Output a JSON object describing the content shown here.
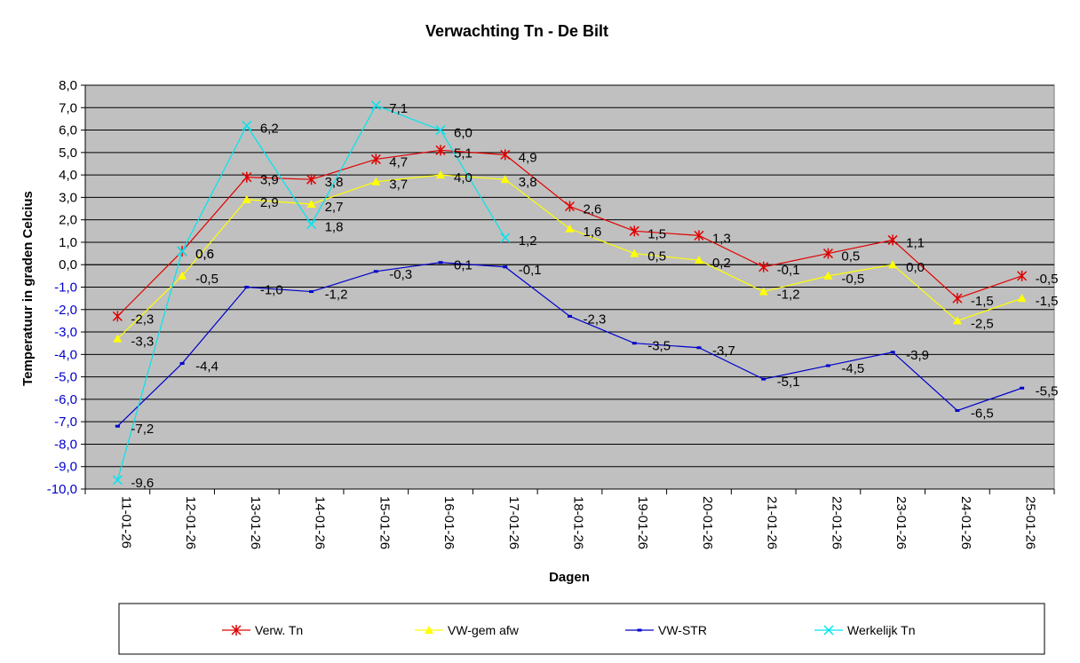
{
  "chart_data": {
    "type": "line",
    "title": "Verwachting Tn - De Bilt",
    "xlabel": "Dagen",
    "ylabel": "Temperatuur in graden Celcius",
    "ylim": [
      -10,
      8
    ],
    "ytick_step": 1,
    "categories": [
      "11-01-26",
      "12-01-26",
      "13-01-26",
      "14-01-26",
      "15-01-26",
      "16-01-26",
      "17-01-26",
      "18-01-26",
      "19-01-26",
      "20-01-26",
      "21-01-26",
      "22-01-26",
      "23-01-26",
      "24-01-26",
      "25-01-26"
    ],
    "series": [
      {
        "name": "Verw. Tn",
        "color": "#e00000",
        "marker": "star",
        "values": [
          -2.3,
          0.6,
          3.9,
          3.8,
          4.7,
          5.1,
          4.9,
          2.6,
          1.5,
          1.3,
          -0.1,
          0.5,
          1.1,
          -1.5,
          -0.5
        ]
      },
      {
        "name": "VW-gem afw",
        "color": "#ffff00",
        "marker": "triangle",
        "values": [
          -3.3,
          -0.5,
          2.9,
          2.7,
          3.7,
          4.0,
          3.8,
          1.6,
          0.5,
          0.2,
          -1.2,
          -0.5,
          0.0,
          -2.5,
          -1.5
        ]
      },
      {
        "name": "VW-STR",
        "color": "#0000cc",
        "marker": "dash",
        "values": [
          -7.2,
          -4.4,
          -1.0,
          -1.2,
          -0.3,
          0.1,
          -0.1,
          -2.3,
          -3.5,
          -3.7,
          -5.1,
          -4.5,
          -3.9,
          -6.5,
          -5.5
        ]
      },
      {
        "name": "Werkelijk Tn",
        "color": "#00e5ee",
        "marker": "x",
        "values": [
          -9.6,
          0.6,
          6.2,
          1.8,
          7.1,
          6.0,
          1.2,
          null,
          null,
          null,
          null,
          null,
          null,
          null,
          null
        ]
      }
    ],
    "grid": true,
    "plot_background": "#c0c0c0",
    "legend_position": "bottom"
  }
}
